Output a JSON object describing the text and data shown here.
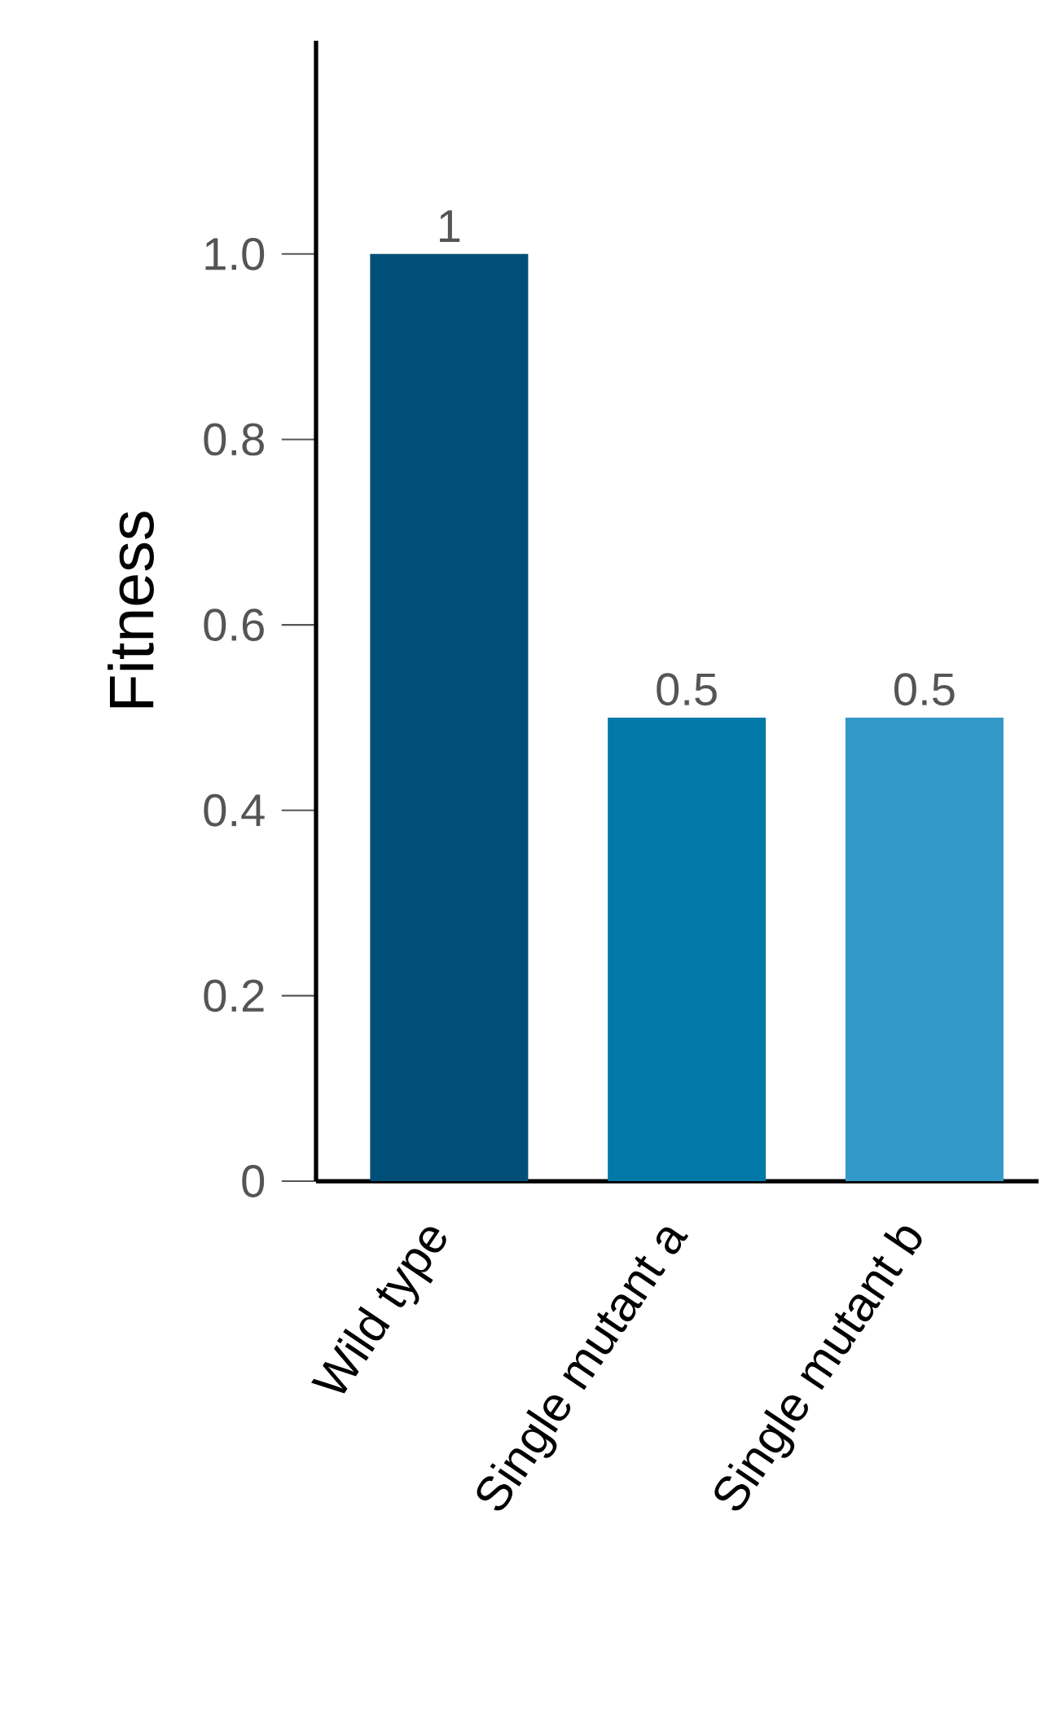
{
  "chart_data": {
    "type": "bar",
    "ylabel": "Fitness",
    "categories": [
      "Wild type",
      "Single mutant a",
      "Single mutant b"
    ],
    "values": [
      1,
      0.5,
      0.5
    ],
    "colors": [
      "#004f78",
      "#0079a8",
      "#3399c8"
    ],
    "data_labels": true,
    "ylim": [
      0,
      1.23
    ],
    "yticks": [
      0,
      0.2,
      0.4,
      0.6,
      0.8,
      {
        "value": 1,
        "label": "1.0"
      }
    ]
  }
}
